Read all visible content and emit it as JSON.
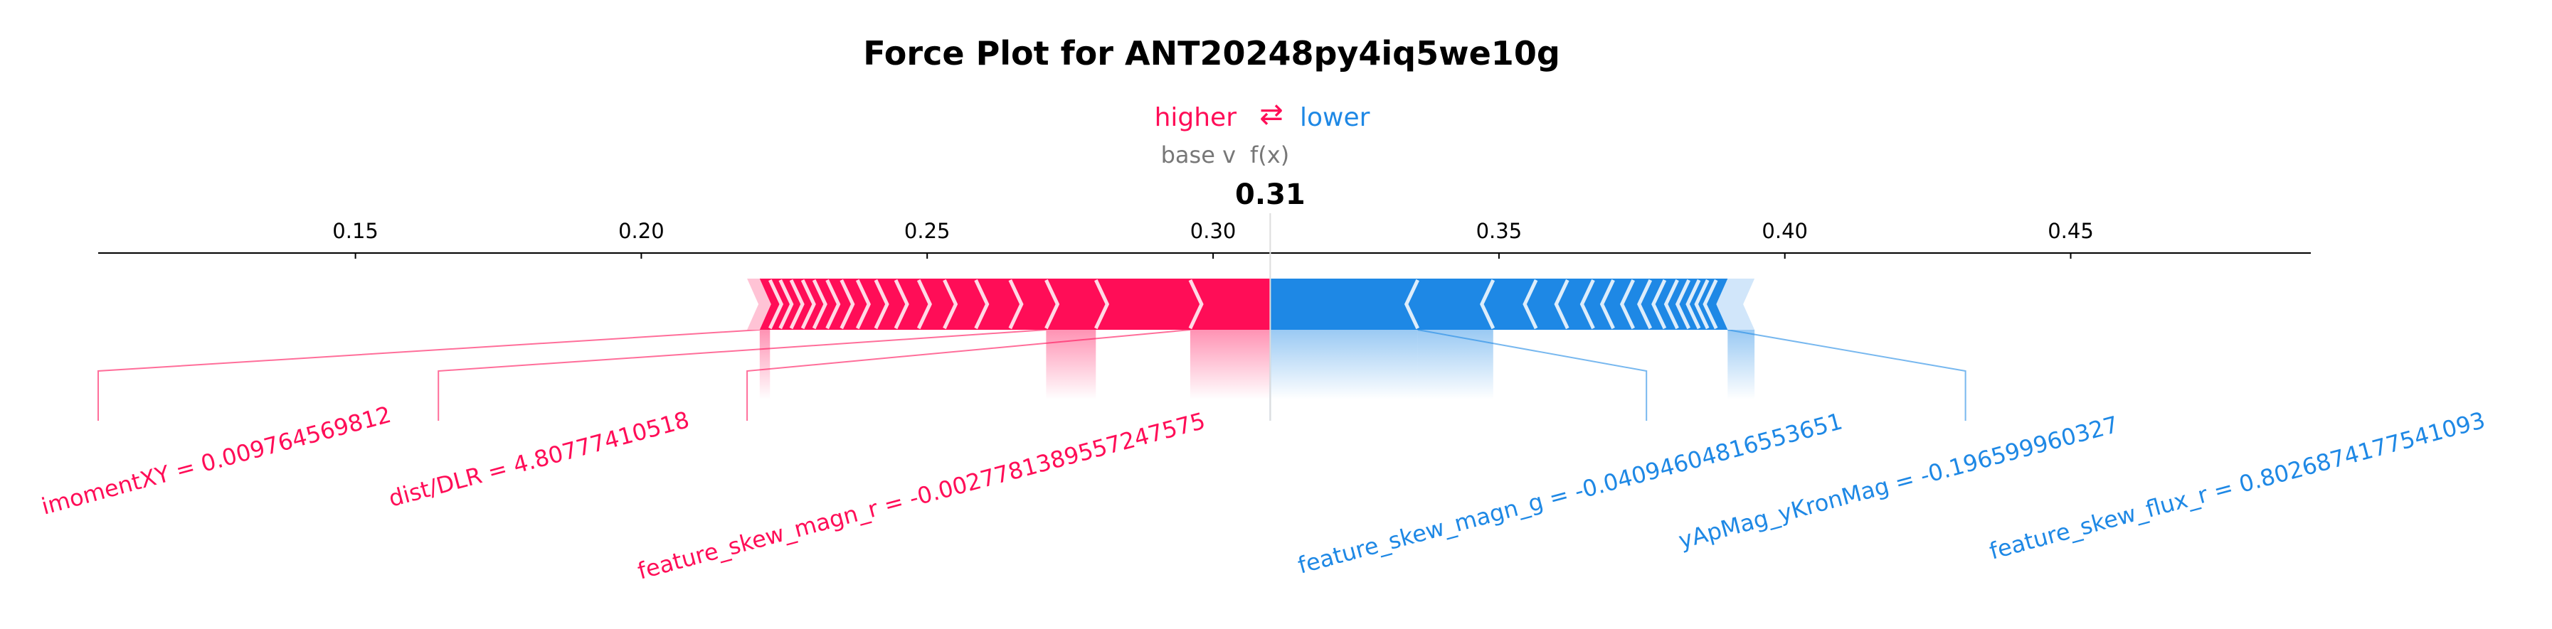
{
  "chart_data": {
    "type": "force",
    "title": "Force Plot for ANT20248py4iq5we10g",
    "legend": {
      "higher": "higher",
      "arrow": "⇄",
      "lower": "lower"
    },
    "base_value_label": "base v",
    "fx_label": "f(x)",
    "output_value": 0.31,
    "output_value_label": "0.31",
    "xlim": [
      0.105,
      0.492
    ],
    "ticks": [
      0.15,
      0.2,
      0.25,
      0.3,
      0.35,
      0.4,
      0.45
    ],
    "tick_labels": [
      "0.15",
      "0.20",
      "0.25",
      "0.30",
      "0.35",
      "0.40",
      "0.45"
    ],
    "positive_range": [
      0.2185,
      0.31
    ],
    "negative_range": [
      0.31,
      0.3947
    ],
    "positive_band_boundaries": [
      0.2207,
      0.2225,
      0.2243,
      0.2262,
      0.2282,
      0.2302,
      0.2325,
      0.235,
      0.2378,
      0.241,
      0.2445,
      0.2485,
      0.253,
      0.2585,
      0.2645,
      0.2708,
      0.2795,
      0.296
    ],
    "negative_band_boundaries": [
      0.3358,
      0.349,
      0.3565,
      0.362,
      0.3665,
      0.37,
      0.3735,
      0.3765,
      0.379,
      0.3812,
      0.3832,
      0.385,
      0.3865,
      0.388,
      0.39
    ],
    "colors": {
      "positive": "#ff0d57",
      "negative": "#1e88e5",
      "positive_light": "#ffc3d5",
      "negative_light": "#d1e6fa",
      "axis": "#000000",
      "muted": "#777777"
    },
    "positive_features": [
      {
        "label": "imomentXY = 0.009764569812",
        "start": 0.2207,
        "end": 0.2225,
        "anchor": 0.105
      },
      {
        "label": "dist/DLR = 4.80777410518",
        "start": 0.2708,
        "end": 0.2795,
        "anchor": 0.1645
      },
      {
        "label": "feature_skew_magn_r = -0.0027781389557247575",
        "start": 0.296,
        "end": 0.31,
        "anchor": 0.2185
      }
    ],
    "negative_features": [
      {
        "label": "feature_skew_magn_g = -0.04094604816553651",
        "start": 0.31,
        "end": 0.3358,
        "anchor": 0.31
      },
      {
        "label": "yApMag_yKronMag = -0.196599960327",
        "start": 0.3358,
        "end": 0.349,
        "anchor": 0.3758
      },
      {
        "label": "feature_skew_flux_r = 0.8026874177541093",
        "start": 0.39,
        "end": 0.3947,
        "anchor": 0.4316
      }
    ]
  }
}
